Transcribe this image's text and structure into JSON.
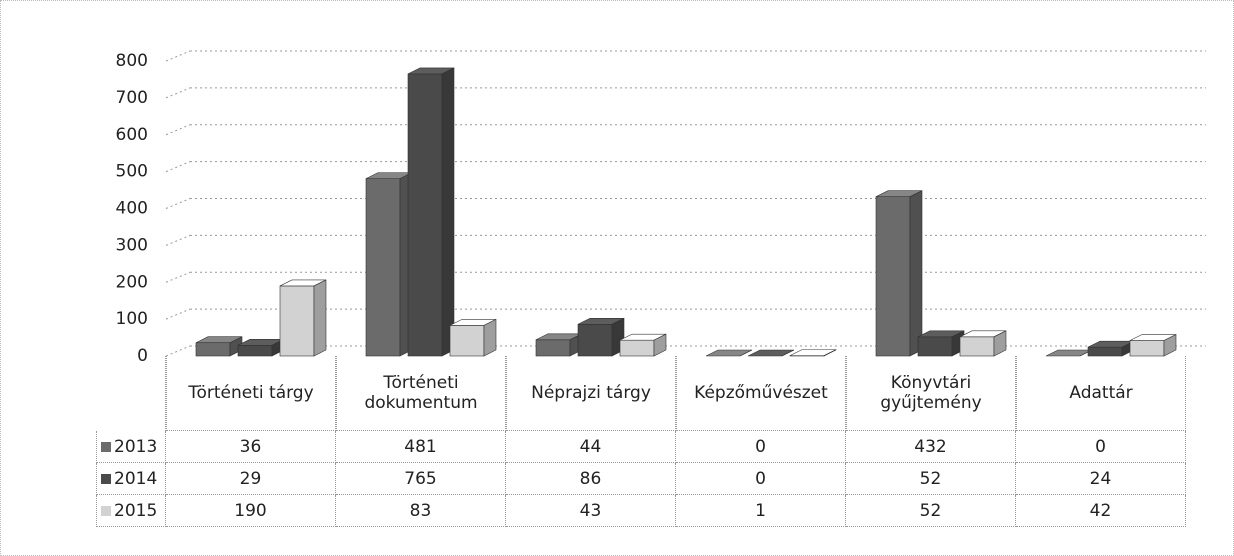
{
  "chart_data": {
    "type": "bar3d",
    "categories": [
      "Történeti tárgy",
      "Történeti dokumentum",
      "Néprajzi tárgy",
      "Képzőművészet",
      "Könyvtári gyűjtemény",
      "Adattár"
    ],
    "series": [
      {
        "name": "2013",
        "color": "#6b6b6b",
        "values": [
          36,
          481,
          44,
          0,
          432,
          0
        ]
      },
      {
        "name": "2014",
        "color": "#4a4a4a",
        "values": [
          29,
          765,
          86,
          0,
          52,
          24
        ]
      },
      {
        "name": "2015",
        "color": "#d2d2d2",
        "values": [
          190,
          83,
          43,
          1,
          52,
          42
        ]
      }
    ],
    "ylim": [
      0,
      800
    ],
    "yticks": [
      0,
      100,
      200,
      300,
      400,
      500,
      600,
      700,
      800
    ],
    "grid": true
  }
}
